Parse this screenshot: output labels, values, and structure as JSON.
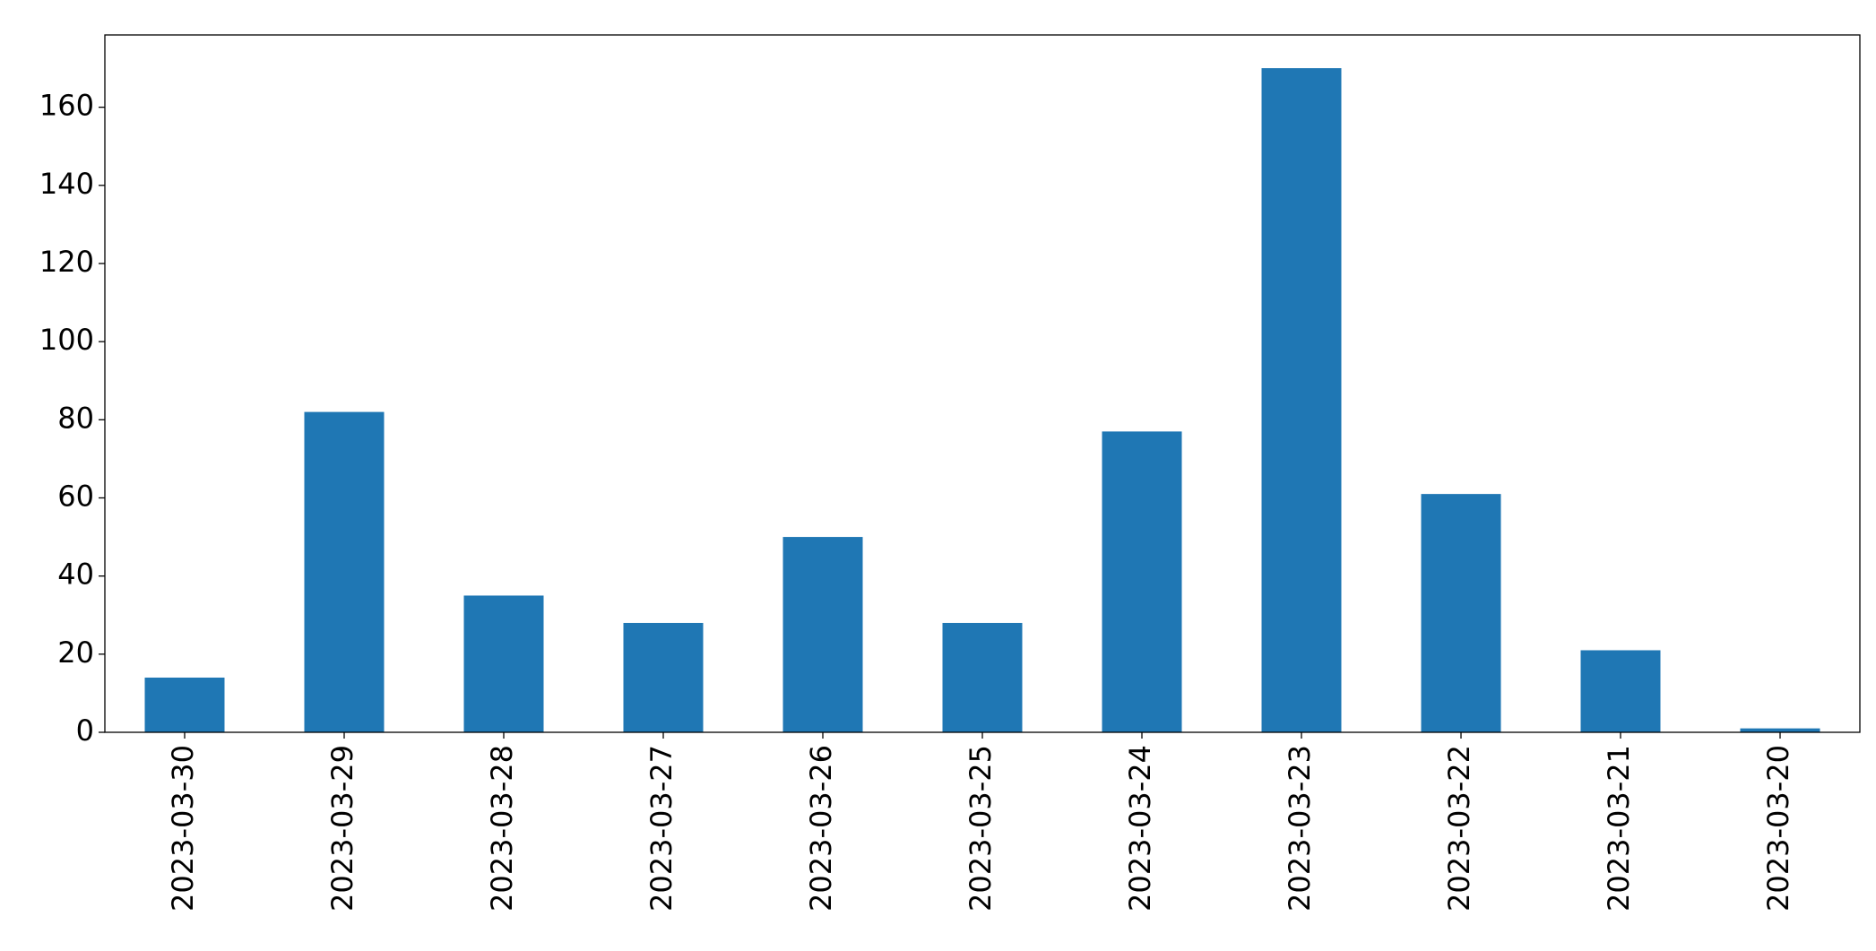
{
  "chart_data": {
    "type": "bar",
    "categories": [
      "2023-03-30",
      "2023-03-29",
      "2023-03-28",
      "2023-03-27",
      "2023-03-26",
      "2023-03-25",
      "2023-03-24",
      "2023-03-23",
      "2023-03-22",
      "2023-03-21",
      "2023-03-20"
    ],
    "values": [
      14,
      82,
      35,
      28,
      50,
      28,
      77,
      170,
      61,
      21,
      1
    ],
    "color": "#1f77b4",
    "ylim": [
      0,
      178.5
    ],
    "yticks": [
      0,
      20,
      40,
      60,
      80,
      100,
      120,
      140,
      160
    ],
    "grid": false
  }
}
